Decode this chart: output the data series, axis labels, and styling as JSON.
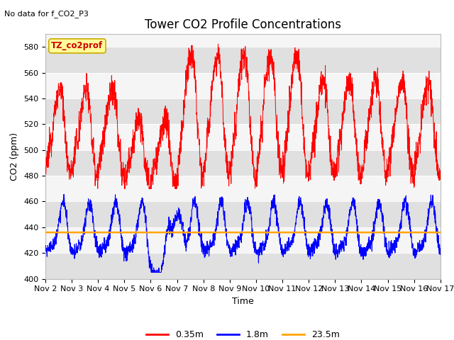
{
  "title": "Tower CO2 Profile Concentrations",
  "no_data_text": "No data for f_CO2_P3",
  "legend_box_text": "TZ_co2prof",
  "xlabel": "Time",
  "ylabel": "CO2 (ppm)",
  "ylim": [
    400,
    590
  ],
  "yticks": [
    400,
    420,
    440,
    460,
    480,
    500,
    520,
    540,
    560,
    580
  ],
  "x_start_day": 2,
  "x_end_day": 17,
  "x_tick_days": [
    2,
    3,
    4,
    5,
    6,
    7,
    8,
    9,
    10,
    11,
    12,
    13,
    14,
    15,
    16,
    17
  ],
  "x_tick_labels": [
    "Nov 2",
    "Nov 3",
    "Nov 4",
    "Nov 5",
    "Nov 6",
    "Nov 7",
    "Nov 8",
    "Nov 9",
    "Nov 10",
    "Nov 11",
    "Nov 12",
    "Nov 13",
    "Nov 14",
    "Nov 15",
    "Nov 16",
    "Nov 17"
  ],
  "flat_line_value": 436,
  "flat_line_color": "#FFA500",
  "red_line_color": "#FF0000",
  "blue_line_color": "#0000FF",
  "legend_entries": [
    "0.35m",
    "1.8m",
    "23.5m"
  ],
  "legend_colors": [
    "#FF0000",
    "#0000FF",
    "#FFA500"
  ],
  "bg_band_color": "#E0E0E0",
  "plot_bg": "#F5F5F5",
  "title_fontsize": 12,
  "axis_fontsize": 9,
  "tick_fontsize": 8,
  "legend_box_color": "#FFFF99",
  "legend_box_edge": "#CCAA00",
  "legend_box_text_color": "#CC0000"
}
